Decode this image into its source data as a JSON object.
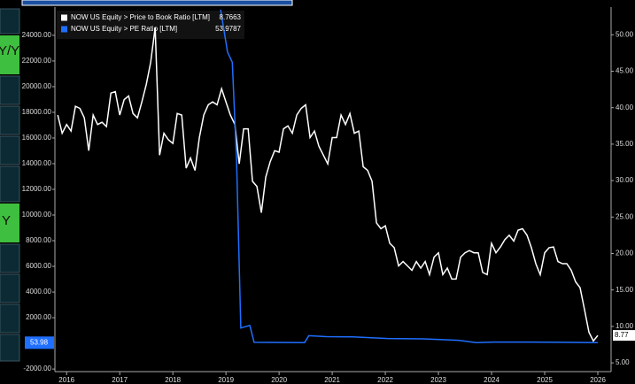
{
  "side_panel": [
    "Y/Y",
    "Y"
  ],
  "chart_data": {
    "type": "line",
    "xlim": [
      2015.78,
      2026.25
    ],
    "xticks": [
      2016,
      2017,
      2018,
      2019,
      2020,
      2021,
      2022,
      2023,
      2024,
      2025,
      2026
    ],
    "ylim": [
      -2200,
      26200
    ],
    "yticks": [
      {
        "value": 24000,
        "label": "24000.00"
      },
      {
        "value": 22000,
        "label": "22000.00"
      },
      {
        "value": 20000,
        "label": "20000.00"
      },
      {
        "value": 18000,
        "label": "18000.00"
      },
      {
        "value": 16000,
        "label": "16000.00"
      },
      {
        "value": 14000,
        "label": "14000.00"
      },
      {
        "value": 12000,
        "label": "12000.00"
      },
      {
        "value": 10000,
        "label": "10000.00"
      },
      {
        "value": 8000,
        "label": "8000.00"
      },
      {
        "value": 6000,
        "label": "6000.00"
      },
      {
        "value": 4000,
        "label": "4000.00"
      },
      {
        "value": 2000,
        "label": "2000.00"
      },
      {
        "value": -2000,
        "label": "-2000.00"
      }
    ],
    "y2lim": [
      3.8,
      53.8
    ],
    "y2ticks": [
      {
        "value": 50,
        "label": "50.00"
      },
      {
        "value": 45,
        "label": "45.00"
      },
      {
        "value": 40,
        "label": "40.00"
      },
      {
        "value": 35,
        "label": "35.00"
      },
      {
        "value": 30,
        "label": "30.00"
      },
      {
        "value": 25,
        "label": "25.00"
      },
      {
        "value": 20,
        "label": "20.00"
      },
      {
        "value": 15,
        "label": "15.00"
      },
      {
        "value": 10,
        "label": "10.00"
      },
      {
        "value": 5,
        "label": "5.00"
      }
    ],
    "series": [
      {
        "name": "NOW US Equity > Price to Book Ratio [LTM]",
        "color": "#ffffff",
        "axis": "y2",
        "last_label": "8.77",
        "x": [
          2015.833,
          2015.917,
          2016.0,
          2016.083,
          2016.167,
          2016.25,
          2016.333,
          2016.417,
          2016.5,
          2016.583,
          2016.667,
          2016.75,
          2016.833,
          2016.917,
          2017.0,
          2017.083,
          2017.167,
          2017.25,
          2017.333,
          2017.417,
          2017.5,
          2017.583,
          2017.667,
          2017.75,
          2017.833,
          2017.917,
          2018.0,
          2018.083,
          2018.167,
          2018.25,
          2018.333,
          2018.417,
          2018.5,
          2018.583,
          2018.667,
          2018.75,
          2018.833,
          2018.917,
          2019.0,
          2019.083,
          2019.167,
          2019.25,
          2019.333,
          2019.417,
          2019.5,
          2019.583,
          2019.667,
          2019.75,
          2019.833,
          2019.917,
          2020.0,
          2020.083,
          2020.167,
          2020.25,
          2020.333,
          2020.417,
          2020.5,
          2020.583,
          2020.667,
          2020.75,
          2020.833,
          2020.917,
          2021.0,
          2021.083,
          2021.167,
          2021.25,
          2021.333,
          2021.417,
          2021.5,
          2021.583,
          2021.667,
          2021.75,
          2021.833,
          2021.917,
          2022.0,
          2022.083,
          2022.167,
          2022.25,
          2022.333,
          2022.417,
          2022.5,
          2022.583,
          2022.667,
          2022.75,
          2022.833,
          2022.917,
          2023.0,
          2023.083,
          2023.167,
          2023.25,
          2023.333,
          2023.417,
          2023.5,
          2023.583,
          2023.667,
          2023.75,
          2023.833,
          2023.917,
          2024.0,
          2024.083,
          2024.167,
          2024.25,
          2024.333,
          2024.417,
          2024.5,
          2024.583,
          2024.667,
          2024.75,
          2024.833,
          2024.917,
          2025.0,
          2025.083,
          2025.167,
          2025.25,
          2025.333,
          2025.417,
          2025.5,
          2025.583,
          2025.667,
          2025.75,
          2025.833,
          2025.917,
          2026.0
        ],
        "values": [
          39.0,
          36.5,
          37.7,
          36.8,
          40.2,
          39.9,
          38.6,
          34.1,
          39.0,
          37.7,
          38.0,
          37.4,
          42.0,
          42.2,
          39.0,
          41.1,
          41.6,
          39.2,
          38.6,
          40.8,
          43.2,
          46.2,
          51.0,
          33.5,
          36.5,
          35.6,
          35.1,
          39.2,
          39.0,
          31.7,
          33.1,
          31.4,
          35.9,
          39.0,
          40.4,
          40.8,
          40.4,
          42.6,
          40.8,
          39.0,
          37.7,
          32.3,
          37.1,
          37.1,
          29.9,
          29.2,
          25.6,
          30.5,
          32.6,
          34.1,
          33.9,
          37.1,
          37.5,
          36.5,
          39.0,
          39.9,
          40.4,
          35.9,
          36.8,
          34.7,
          33.5,
          32.3,
          35.9,
          35.9,
          39.0,
          37.7,
          39.2,
          36.5,
          36.8,
          31.9,
          31.4,
          29.9,
          24.2,
          23.4,
          23.8,
          21.4,
          20.8,
          18.3,
          18.9,
          18.3,
          17.7,
          18.9,
          18.0,
          18.9,
          17.1,
          19.5,
          20.1,
          17.1,
          18.0,
          16.5,
          16.5,
          19.5,
          20.1,
          20.4,
          20.1,
          20.1,
          17.4,
          17.1,
          21.4,
          20.1,
          20.9,
          21.9,
          22.5,
          21.7,
          23.2,
          23.4,
          22.5,
          20.8,
          18.6,
          17.1,
          20.1,
          20.8,
          20.9,
          18.9,
          18.6,
          18.6,
          17.7,
          16.1,
          15.3,
          12.3,
          9.2,
          8.0,
          8.7663
        ]
      },
      {
        "name": "NOW US Equity > PE Ratio [LTM]",
        "color": "#1f6fff",
        "axis": "y",
        "last_label": "53.98",
        "x": [
          2018.9,
          2019.03,
          2019.12,
          2019.2,
          2019.28,
          2019.45,
          2019.53,
          2020.48,
          2020.56,
          2020.89,
          2021.39,
          2022.05,
          2022.72,
          2023.38,
          2023.71,
          2024.04,
          2024.71,
          2025.37,
          2026.0
        ],
        "values": [
          26000,
          22700,
          21900,
          14300,
          1200,
          1400,
          80,
          60,
          600,
          520,
          500,
          380,
          350,
          240,
          60,
          100,
          100,
          80,
          53.9787
        ]
      }
    ]
  }
}
